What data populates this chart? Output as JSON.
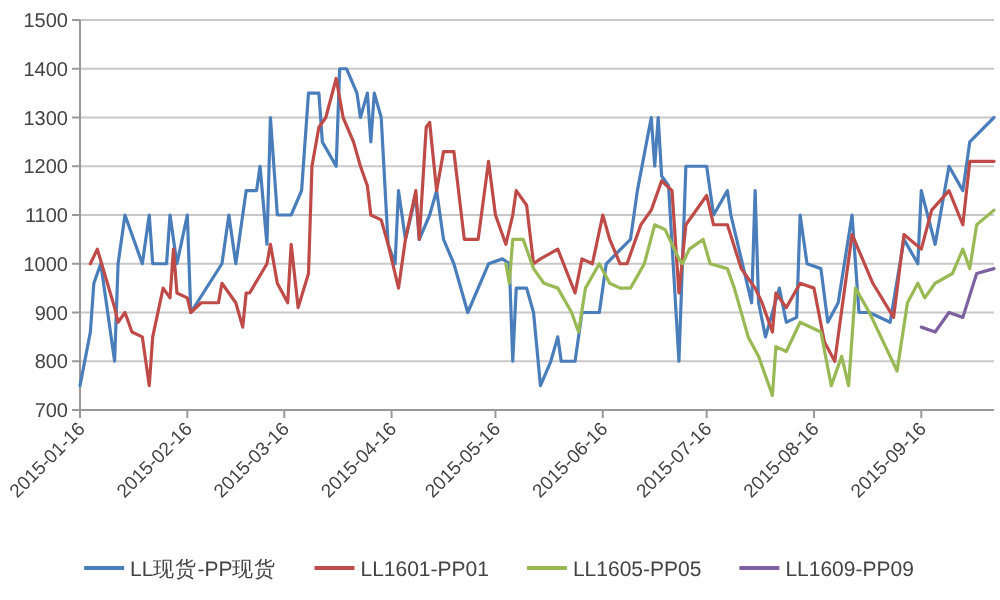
{
  "chart_data": {
    "type": "line",
    "xlim": [
      "2015-01-16",
      "2015-10-07"
    ],
    "xticks": [
      "2015-01-16",
      "2015-02-16",
      "2015-03-16",
      "2015-04-16",
      "2015-05-16",
      "2015-06-16",
      "2015-07-16",
      "2015-08-16",
      "2015-09-16"
    ],
    "ylim": [
      700,
      1500
    ],
    "yticks": [
      700,
      800,
      900,
      1000,
      1100,
      1200,
      1300,
      1400,
      1500
    ],
    "grid": "y",
    "legend": "bottom",
    "series": [
      {
        "name": "LL现货-PP现货",
        "color": "#4a7ebb",
        "x": [
          "2015-01-16",
          "2015-01-19",
          "2015-01-20",
          "2015-01-22",
          "2015-01-26",
          "2015-01-27",
          "2015-01-29",
          "2015-02-03",
          "2015-02-05",
          "2015-02-06",
          "2015-02-10",
          "2015-02-11",
          "2015-02-13",
          "2015-02-16",
          "2015-02-17",
          "2015-02-26",
          "2015-02-28",
          "2015-03-02",
          "2015-03-05",
          "2015-03-08",
          "2015-03-09",
          "2015-03-11",
          "2015-03-12",
          "2015-03-14",
          "2015-03-18",
          "2015-03-21",
          "2015-03-23",
          "2015-03-26",
          "2015-03-27",
          "2015-03-31",
          "2015-04-01",
          "2015-04-03",
          "2015-04-06",
          "2015-04-07",
          "2015-04-09",
          "2015-04-10",
          "2015-04-11",
          "2015-04-13",
          "2015-04-15",
          "2015-04-17",
          "2015-04-18",
          "2015-04-20",
          "2015-04-23",
          "2015-04-24",
          "2015-04-27",
          "2015-04-29",
          "2015-05-01",
          "2015-05-04",
          "2015-05-08",
          "2015-05-14",
          "2015-05-18",
          "2015-05-20",
          "2015-05-21",
          "2015-05-22",
          "2015-05-25",
          "2015-05-27",
          "2015-05-29",
          "2015-06-01",
          "2015-06-03",
          "2015-06-04",
          "2015-06-08",
          "2015-06-10",
          "2015-06-15",
          "2015-06-17",
          "2015-06-24",
          "2015-06-26",
          "2015-06-30",
          "2015-07-01",
          "2015-07-02",
          "2015-07-03",
          "2015-07-05",
          "2015-07-08",
          "2015-07-10",
          "2015-07-16",
          "2015-07-18",
          "2015-07-22",
          "2015-07-23",
          "2015-07-26",
          "2015-07-29",
          "2015-07-30",
          "2015-07-31",
          "2015-08-02",
          "2015-08-06",
          "2015-08-08",
          "2015-08-11",
          "2015-08-12",
          "2015-08-14",
          "2015-08-18",
          "2015-08-20",
          "2015-08-23",
          "2015-08-27",
          "2015-08-29",
          "2015-09-01",
          "2015-09-07",
          "2015-09-11",
          "2015-09-15",
          "2015-09-16",
          "2015-09-20",
          "2015-09-24",
          "2015-09-28",
          "2015-09-30",
          "2015-10-07"
        ],
        "values": [
          750,
          860,
          960,
          1000,
          800,
          1000,
          1100,
          1000,
          1100,
          1000,
          1000,
          1100,
          1000,
          1100,
          900,
          1000,
          1100,
          1000,
          1150,
          1150,
          1200,
          1040,
          1300,
          1100,
          1100,
          1150,
          1350,
          1350,
          1250,
          1200,
          1400,
          1400,
          1350,
          1300,
          1350,
          1250,
          1350,
          1300,
          1040,
          1000,
          1150,
          1050,
          1140,
          1050,
          1100,
          1150,
          1050,
          1000,
          900,
          1000,
          1010,
          1000,
          800,
          950,
          950,
          900,
          750,
          800,
          850,
          800,
          800,
          900,
          900,
          1000,
          1050,
          1150,
          1300,
          1200,
          1300,
          1180,
          1160,
          800,
          1200,
          1200,
          1100,
          1150,
          1100,
          1010,
          920,
          1150,
          920,
          850,
          950,
          880,
          890,
          1100,
          1000,
          990,
          880,
          920,
          1100,
          900,
          900,
          880,
          1050,
          1000,
          1150,
          1040,
          1200,
          1150,
          1250,
          1300
        ]
      },
      {
        "name": "LL1601-PP01",
        "color": "#be4b48",
        "x": [
          "2015-01-19",
          "2015-01-21",
          "2015-01-26",
          "2015-01-27",
          "2015-01-29",
          "2015-01-31",
          "2015-02-03",
          "2015-02-05",
          "2015-02-06",
          "2015-02-09",
          "2015-02-11",
          "2015-02-12",
          "2015-02-13",
          "2015-02-16",
          "2015-02-17",
          "2015-02-20",
          "2015-02-25",
          "2015-02-26",
          "2015-03-02",
          "2015-03-04",
          "2015-03-05",
          "2015-03-06",
          "2015-03-11",
          "2015-03-12",
          "2015-03-14",
          "2015-03-17",
          "2015-03-18",
          "2015-03-20",
          "2015-03-23",
          "2015-03-24",
          "2015-03-26",
          "2015-03-28",
          "2015-03-31",
          "2015-04-02",
          "2015-04-05",
          "2015-04-07",
          "2015-04-09",
          "2015-04-10",
          "2015-04-13",
          "2015-04-15",
          "2015-04-18",
          "2015-04-20",
          "2015-04-23",
          "2015-04-24",
          "2015-04-26",
          "2015-04-27",
          "2015-04-29",
          "2015-05-01",
          "2015-05-04",
          "2015-05-07",
          "2015-05-11",
          "2015-05-14",
          "2015-05-16",
          "2015-05-19",
          "2015-05-21",
          "2015-05-22",
          "2015-05-25",
          "2015-05-27",
          "2015-05-29",
          "2015-06-03",
          "2015-06-08",
          "2015-06-10",
          "2015-06-13",
          "2015-06-16",
          "2015-06-18",
          "2015-06-21",
          "2015-06-23",
          "2015-06-27",
          "2015-06-30",
          "2015-07-02",
          "2015-07-03",
          "2015-07-06",
          "2015-07-08",
          "2015-07-10",
          "2015-07-16",
          "2015-07-18",
          "2015-07-22",
          "2015-07-26",
          "2015-07-30",
          "2015-08-01",
          "2015-08-04",
          "2015-08-05",
          "2015-08-08",
          "2015-08-12",
          "2015-08-16",
          "2015-08-19",
          "2015-08-22",
          "2015-08-27",
          "2015-09-02",
          "2015-09-08",
          "2015-09-11",
          "2015-09-16",
          "2015-09-19",
          "2015-09-24",
          "2015-09-28",
          "2015-09-30",
          "2015-10-07"
        ],
        "values": [
          1000,
          1030,
          910,
          880,
          900,
          860,
          850,
          750,
          850,
          950,
          930,
          1030,
          940,
          930,
          900,
          920,
          920,
          960,
          920,
          870,
          940,
          940,
          1000,
          1040,
          960,
          920,
          1040,
          910,
          980,
          1200,
          1280,
          1300,
          1380,
          1300,
          1250,
          1200,
          1160,
          1100,
          1090,
          1040,
          950,
          1050,
          1150,
          1050,
          1280,
          1290,
          1150,
          1230,
          1230,
          1050,
          1050,
          1210,
          1100,
          1040,
          1100,
          1150,
          1120,
          1000,
          1010,
          1030,
          940,
          1010,
          1000,
          1100,
          1050,
          1000,
          1000,
          1080,
          1110,
          1150,
          1170,
          1150,
          940,
          1080,
          1140,
          1080,
          1080,
          990,
          950,
          920,
          860,
          940,
          910,
          960,
          950,
          840,
          800,
          1060,
          960,
          890,
          1060,
          1030,
          1110,
          1150,
          1080,
          1210,
          1210
        ]
      },
      {
        "name": "LL1605-PP05",
        "color": "#98b954",
        "x": [
          "2015-05-19",
          "2015-05-20",
          "2015-05-21",
          "2015-05-24",
          "2015-05-27",
          "2015-05-30",
          "2015-06-03",
          "2015-06-07",
          "2015-06-09",
          "2015-06-11",
          "2015-06-15",
          "2015-06-18",
          "2015-06-21",
          "2015-06-24",
          "2015-06-28",
          "2015-07-01",
          "2015-07-04",
          "2015-07-08",
          "2015-07-09",
          "2015-07-11",
          "2015-07-15",
          "2015-07-17",
          "2015-07-22",
          "2015-07-24",
          "2015-07-28",
          "2015-07-31",
          "2015-08-04",
          "2015-08-05",
          "2015-08-08",
          "2015-08-12",
          "2015-08-18",
          "2015-08-21",
          "2015-08-24",
          "2015-08-26",
          "2015-08-28",
          "2015-09-01",
          "2015-09-03",
          "2015-09-09",
          "2015-09-12",
          "2015-09-15",
          "2015-09-17",
          "2015-09-20",
          "2015-09-25",
          "2015-09-28",
          "2015-09-30",
          "2015-10-02",
          "2015-10-07"
        ],
        "values": [
          1000,
          960,
          1050,
          1050,
          990,
          960,
          950,
          900,
          860,
          950,
          1000,
          960,
          950,
          950,
          1000,
          1080,
          1070,
          1010,
          1000,
          1030,
          1050,
          1000,
          990,
          950,
          850,
          810,
          730,
          830,
          820,
          880,
          860,
          750,
          810,
          750,
          950,
          900,
          870,
          780,
          920,
          960,
          930,
          960,
          980,
          1030,
          990,
          1080,
          1110
        ]
      },
      {
        "name": "LL1609-PP09",
        "color": "#7d60a0",
        "x": [
          "2015-09-16",
          "2015-09-20",
          "2015-09-24",
          "2015-09-28",
          "2015-10-02",
          "2015-10-07"
        ],
        "values": [
          870,
          860,
          900,
          890,
          980,
          990
        ]
      }
    ]
  }
}
